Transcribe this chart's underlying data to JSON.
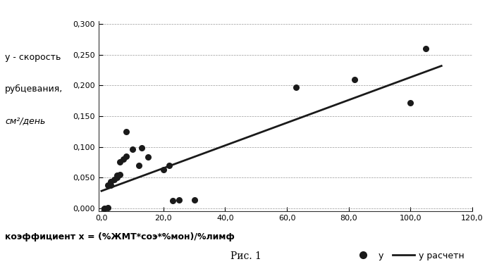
{
  "scatter_x": [
    1,
    2,
    2,
    3,
    3,
    4,
    5,
    5,
    6,
    6,
    7,
    8,
    8,
    10,
    12,
    13,
    15,
    20,
    22,
    23,
    25,
    30,
    63,
    82,
    100,
    105
  ],
  "scatter_y": [
    0.0,
    0.001,
    0.037,
    0.038,
    0.043,
    0.047,
    0.05,
    0.053,
    0.055,
    0.075,
    0.08,
    0.085,
    0.125,
    0.096,
    0.07,
    0.098,
    0.083,
    0.063,
    0.07,
    0.012,
    0.013,
    0.013,
    0.197,
    0.21,
    0.172,
    0.26
  ],
  "line_x": [
    0,
    110
  ],
  "line_y": [
    0.028,
    0.232
  ],
  "ylabel_line1": "у - скорость",
  "ylabel_line2": "рубцевания,",
  "ylabel_line3": "см²/день",
  "xlabel": "коэффициент х = (%ЖМТ*соэ*%мон)/%лимф",
  "caption": "Рис. 1",
  "legend_scatter": "у",
  "legend_line": "у расчетн",
  "yticks": [
    0.0,
    0.05,
    0.1,
    0.15,
    0.2,
    0.25,
    0.3
  ],
  "ytick_labels": [
    "0,000",
    "0,050",
    "0,100",
    "0,150",
    "0,200",
    "0,250",
    "0,300"
  ],
  "xticks": [
    0.0,
    20.0,
    40.0,
    60.0,
    80.0,
    100.0,
    120.0
  ],
  "xtick_labels": [
    "0,0",
    "20,0",
    "40,0",
    "60,0",
    "80,0",
    "100,0",
    "120,0"
  ],
  "ylim": [
    -0.005,
    0.305
  ],
  "xlim": [
    -1.0,
    120.0
  ],
  "scatter_color": "#1a1a1a",
  "line_color": "#1a1a1a",
  "bg_color": "#ffffff",
  "grid_color": "#999999",
  "tick_fontsize": 8,
  "label_fontsize": 9,
  "caption_fontsize": 10
}
